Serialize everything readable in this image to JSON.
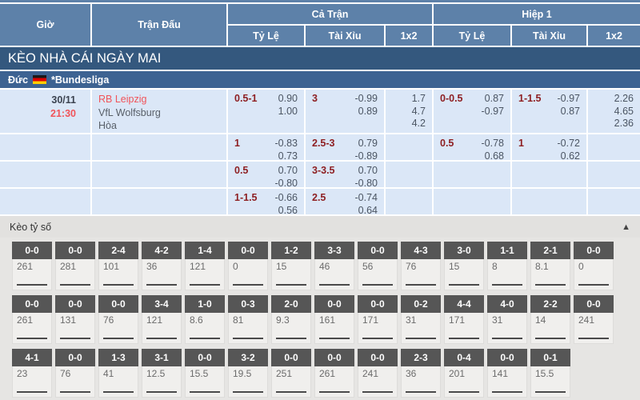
{
  "colors": {
    "header_blue": "#5d81a9",
    "banner_blue": "#34587e",
    "league_blue": "#3d6392",
    "row_blue": "#dbe7f7",
    "handicap_red": "#8e2023",
    "accent_red": "#f1545a",
    "score_box_gray": "#565656"
  },
  "table_header": {
    "time": "Giờ",
    "match": "Trận Đấu",
    "full_time": "Cả Trận",
    "first_half": "Hiệp 1",
    "handicap": "Tỷ Lệ",
    "over_under": "Tài Xỉu",
    "one_x_two": "1x2"
  },
  "banner": {
    "title": "KÈO NHÀ CÁI NGÀY MAI"
  },
  "league": {
    "country": "Đức",
    "name": "*Bundesliga",
    "flag_icon": "germany-flag"
  },
  "match": {
    "date": "30/11",
    "time": "21:30",
    "home": "RB Leipzig",
    "away": "VfL Wolfsburg",
    "draw": "Hòa"
  },
  "odds_rows": [
    {
      "ft_hdp": "0.5-1",
      "ft_hdp_top": "0.90",
      "ft_hdp_bot": "1.00",
      "ft_ou": "3",
      "ft_ou_top": "-0.99",
      "ft_ou_bot": "0.89",
      "ft_1x2": [
        "1.7",
        "4.7",
        "4.2"
      ],
      "h1_hdp": "0-0.5",
      "h1_hdp_top": "0.87",
      "h1_hdp_bot": "-0.97",
      "h1_ou": "1-1.5",
      "h1_ou_top": "-0.97",
      "h1_ou_bot": "0.87",
      "h1_1x2": [
        "2.26",
        "4.65",
        "2.36"
      ]
    },
    {
      "ft_hdp": "1",
      "ft_hdp_top": "-0.83",
      "ft_hdp_bot": "0.73",
      "ft_ou": "2.5-3",
      "ft_ou_top": "0.79",
      "ft_ou_bot": "-0.89",
      "h1_hdp": "0.5",
      "h1_hdp_top": "-0.78",
      "h1_hdp_bot": "0.68",
      "h1_ou": "1",
      "h1_ou_top": "-0.72",
      "h1_ou_bot": "0.62"
    },
    {
      "ft_hdp": "0.5",
      "ft_hdp_top": "0.70",
      "ft_hdp_bot": "-0.80",
      "ft_ou": "3-3.5",
      "ft_ou_top": "0.70",
      "ft_ou_bot": "-0.80"
    },
    {
      "ft_hdp": "1-1.5",
      "ft_hdp_top": "-0.66",
      "ft_hdp_bot": "0.56",
      "ft_ou": "2.5",
      "ft_ou_top": "-0.74",
      "ft_ou_bot": "0.64"
    }
  ],
  "score_section": {
    "title": "Kèo tỷ số",
    "collapse_icon": "▲",
    "rows": [
      [
        {
          "score": "0-0",
          "odds": "261"
        },
        {
          "score": "0-0",
          "odds": "281"
        },
        {
          "score": "2-4",
          "odds": "101"
        },
        {
          "score": "4-2",
          "odds": "36"
        },
        {
          "score": "1-4",
          "odds": "121"
        },
        {
          "score": "0-0",
          "odds": "0"
        },
        {
          "score": "1-2",
          "odds": "15"
        },
        {
          "score": "3-3",
          "odds": "46"
        },
        {
          "score": "0-0",
          "odds": "56"
        },
        {
          "score": "4-3",
          "odds": "76"
        },
        {
          "score": "3-0",
          "odds": "15"
        },
        {
          "score": "1-1",
          "odds": "8"
        },
        {
          "score": "2-1",
          "odds": "8.1"
        },
        {
          "score": "0-0",
          "odds": "0"
        }
      ],
      [
        {
          "score": "0-0",
          "odds": "261"
        },
        {
          "score": "0-0",
          "odds": "131"
        },
        {
          "score": "0-0",
          "odds": "76"
        },
        {
          "score": "3-4",
          "odds": "121"
        },
        {
          "score": "1-0",
          "odds": "8.6"
        },
        {
          "score": "0-3",
          "odds": "81"
        },
        {
          "score": "2-0",
          "odds": "9.3"
        },
        {
          "score": "0-0",
          "odds": "161"
        },
        {
          "score": "0-0",
          "odds": "171"
        },
        {
          "score": "0-2",
          "odds": "31"
        },
        {
          "score": "4-4",
          "odds": "171"
        },
        {
          "score": "4-0",
          "odds": "31"
        },
        {
          "score": "2-2",
          "odds": "14"
        },
        {
          "score": "0-0",
          "odds": "241"
        }
      ],
      [
        {
          "score": "4-1",
          "odds": "23"
        },
        {
          "score": "0-0",
          "odds": "76"
        },
        {
          "score": "1-3",
          "odds": "41"
        },
        {
          "score": "3-1",
          "odds": "12.5"
        },
        {
          "score": "0-0",
          "odds": "15.5"
        },
        {
          "score": "3-2",
          "odds": "19.5"
        },
        {
          "score": "0-0",
          "odds": "251"
        },
        {
          "score": "0-0",
          "odds": "261"
        },
        {
          "score": "0-0",
          "odds": "241"
        },
        {
          "score": "2-3",
          "odds": "36"
        },
        {
          "score": "0-4",
          "odds": "201"
        },
        {
          "score": "0-0",
          "odds": "141"
        },
        {
          "score": "0-1",
          "odds": "15.5"
        }
      ]
    ]
  }
}
